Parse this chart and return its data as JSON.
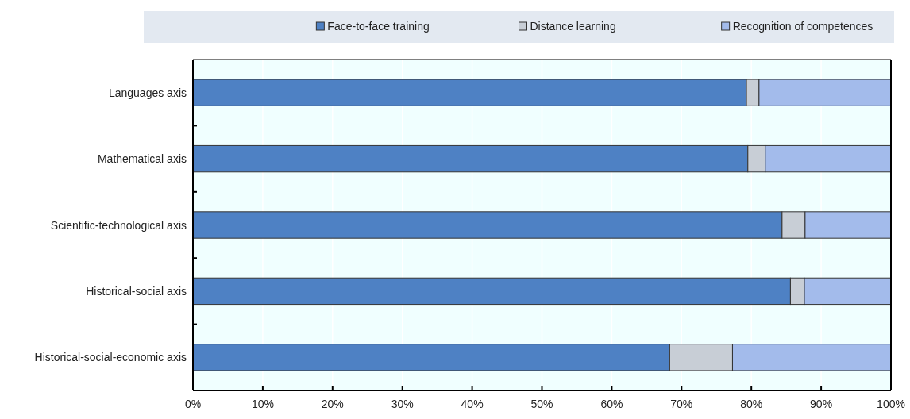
{
  "chart_data": {
    "type": "bar",
    "orientation": "horizontal",
    "stacked": true,
    "categories": [
      "Languages axis",
      "Mathematical axis",
      "Scientific-technological axis",
      "Historical-social axis",
      "Historical-social-economic axis"
    ],
    "series": [
      {
        "name": "Face-to-face training",
        "color": "#4e81c4",
        "values": [
          79.3,
          79.5,
          84.4,
          85.6,
          68.3
        ]
      },
      {
        "name": "Distance learning",
        "color": "#c8ced6",
        "values": [
          1.8,
          2.5,
          3.3,
          2.0,
          9.0
        ]
      },
      {
        "name": "Recognition of competences",
        "color": "#a3bbeb",
        "values": [
          18.9,
          18.0,
          12.3,
          12.4,
          22.7
        ]
      }
    ],
    "xlim": [
      0,
      100
    ],
    "xticks": [
      {
        "value": 0,
        "label": "0%"
      },
      {
        "value": 10,
        "label": "10%"
      },
      {
        "value": 20,
        "label": "20%"
      },
      {
        "value": 30,
        "label": "30%"
      },
      {
        "value": 40,
        "label": "40%"
      },
      {
        "value": 50,
        "label": "50%"
      },
      {
        "value": 60,
        "label": "60%"
      },
      {
        "value": 70,
        "label": "70%"
      },
      {
        "value": 80,
        "label": "80%"
      },
      {
        "value": 90,
        "label": "90%"
      },
      {
        "value": 100,
        "label": "100%"
      }
    ],
    "grid": "x",
    "legend": "top"
  }
}
